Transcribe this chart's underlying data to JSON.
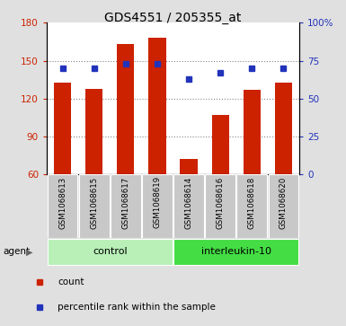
{
  "title": "GDS4551 / 205355_at",
  "samples": [
    "GSM1068613",
    "GSM1068615",
    "GSM1068617",
    "GSM1068619",
    "GSM1068614",
    "GSM1068616",
    "GSM1068618",
    "GSM1068620"
  ],
  "counts": [
    133,
    128,
    163,
    168,
    72,
    107,
    127,
    133
  ],
  "percentiles": [
    70,
    70,
    73,
    73,
    63,
    67,
    70,
    70
  ],
  "groups": [
    {
      "label": "control",
      "start": 0,
      "end": 4,
      "color": "#90ee90"
    },
    {
      "label": "interleukin-10",
      "start": 4,
      "end": 8,
      "color": "#44dd44"
    }
  ],
  "ylim_left": [
    60,
    180
  ],
  "ylim_right": [
    0,
    100
  ],
  "yticks_left": [
    60,
    90,
    120,
    150,
    180
  ],
  "yticks_right": [
    0,
    25,
    50,
    75,
    100
  ],
  "bar_color": "#cc2200",
  "dot_color": "#2233bb",
  "grid_color": "#888888",
  "bg_color": "#e0e0e0",
  "plot_bg": "#ffffff",
  "bar_width": 0.55,
  "legend_count_label": "count",
  "legend_pct_label": "percentile rank within the sample",
  "agent_label": "agent",
  "left_label_color": "#cc2200",
  "right_label_color": "#2233bb",
  "sample_box_color": "#c8c8c8",
  "group_control_color": "#b8f0b8",
  "group_il10_color": "#44dd44"
}
